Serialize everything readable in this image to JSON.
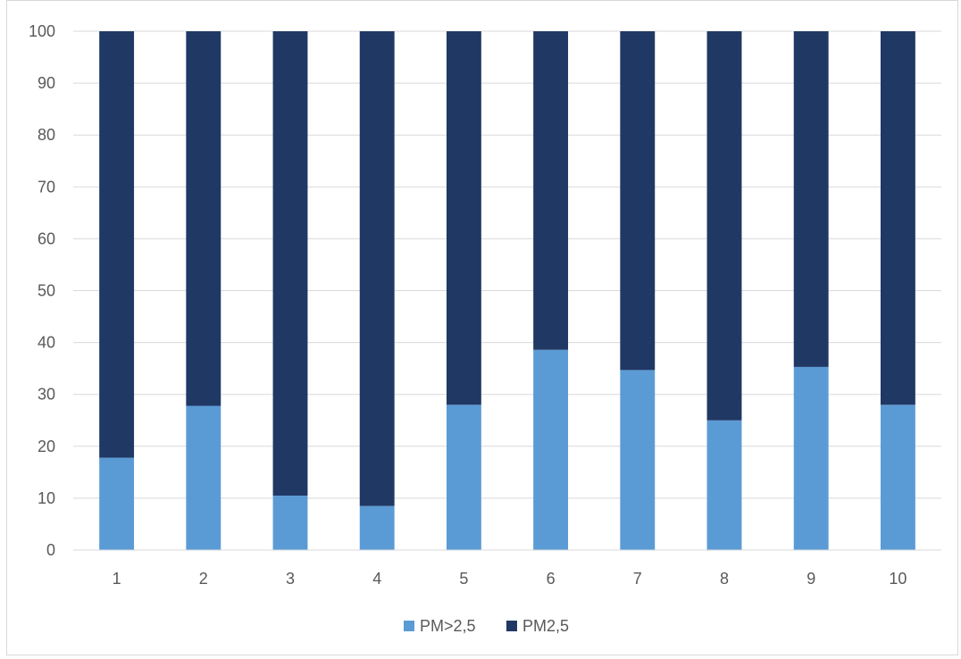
{
  "chart_data": {
    "type": "bar",
    "stacked": true,
    "categories": [
      "1",
      "2",
      "3",
      "4",
      "5",
      "6",
      "7",
      "8",
      "9",
      "10"
    ],
    "series": [
      {
        "name": "PM>2,5",
        "color": "#5b9bd5",
        "values": [
          17.8,
          27.8,
          10.5,
          8.5,
          28.0,
          38.6,
          34.7,
          25.0,
          35.3,
          28.0
        ]
      },
      {
        "name": "PM2,5",
        "color": "#203864",
        "values": [
          82.2,
          72.2,
          89.5,
          91.5,
          72.0,
          61.4,
          65.3,
          75.0,
          64.7,
          72.0
        ]
      }
    ],
    "ylim": [
      0,
      100
    ],
    "yticks": [
      "0",
      "10",
      "20",
      "30",
      "40",
      "50",
      "60",
      "70",
      "80",
      "90",
      "100"
    ],
    "grid": true,
    "legend_position": "bottom",
    "gridline_color": "#d9d9d9"
  }
}
